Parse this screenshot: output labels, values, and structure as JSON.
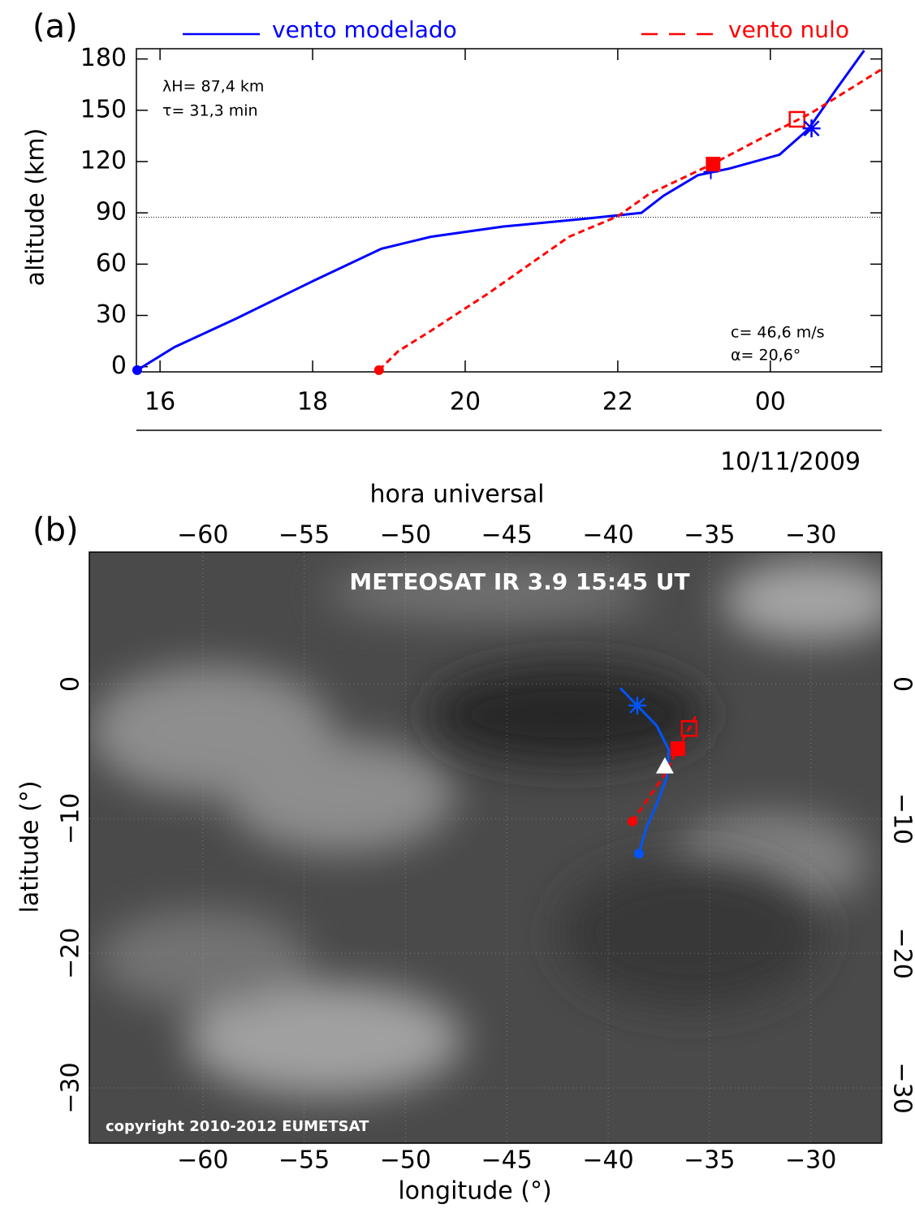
{
  "chart_data": [
    {
      "type": "line",
      "panel_label": "(a)",
      "x_label": "hora universal",
      "y_label": "altitude (km)",
      "date_label": "10/11/2009",
      "annotations": [
        "λH= 87,4 km",
        "τ= 31,3 min",
        "c= 46,6 m/s",
        "α= 20,6°"
      ],
      "xlim": [
        15.69,
        25.46
      ],
      "ylim": [
        -3,
        186
      ],
      "xticks": [
        16,
        18,
        20,
        22,
        {
          "value": 24,
          "label": "00"
        }
      ],
      "yticks": [
        0,
        30,
        60,
        90,
        120,
        150,
        180
      ],
      "reference_line": 87.4,
      "series": [
        {
          "name": "vento modelado",
          "color": "#0000ff",
          "dash": false,
          "x": [
            15.7,
            16.19,
            16.99,
            18.0,
            18.9,
            19.55,
            20.5,
            21.56,
            22.31,
            22.6,
            23.05,
            23.47,
            24.12,
            24.5,
            24.86,
            25.23
          ],
          "values": [
            -2,
            11.5,
            28,
            50,
            69,
            76,
            82,
            86.5,
            90,
            100,
            112,
            116,
            124,
            139,
            162,
            185
          ]
        },
        {
          "name": "vento nulo",
          "color": "#ff0000",
          "dash": true,
          "x": [
            18.87,
            19.12,
            19.55,
            20.29,
            21.36,
            22.0,
            22.41,
            23.26,
            23.9,
            24.54,
            25.46
          ],
          "values": [
            -2,
            9,
            21,
            42.5,
            76,
            88,
            101,
            119,
            134,
            148.5,
            174
          ]
        }
      ],
      "markers": [
        {
          "x": 15.7,
          "y": -2,
          "symbol": "circle",
          "color": "#0000ff"
        },
        {
          "x": 18.87,
          "y": -2,
          "symbol": "circle",
          "color": "#ff0000"
        },
        {
          "x": 23.22,
          "y": 114,
          "symbol": "plus",
          "color": "#0000ff"
        },
        {
          "x": 23.25,
          "y": 118.5,
          "symbol": "square",
          "color": "#ff0000"
        },
        {
          "x": 24.35,
          "y": 144.7,
          "symbol": "square-open",
          "color": "#ff0000"
        },
        {
          "x": 24.54,
          "y": 139.4,
          "symbol": "asterisk",
          "color": "#0000ff"
        }
      ]
    },
    {
      "type": "map",
      "panel_label": "(b)",
      "title": "METEOSAT IR 3.9 15:45 UT",
      "credit": "copyright 2010-2012 EUMETSAT",
      "x_label": "longitude (°)",
      "y_label": "latitude (°)",
      "xlim": [
        -65.6,
        -26.5
      ],
      "ylim": [
        -34.1,
        9.8
      ],
      "xticks": [
        {
          "value": -60,
          "label": "−60"
        },
        {
          "value": -55,
          "label": "−55"
        },
        {
          "value": -50,
          "label": "−50"
        },
        {
          "value": -45,
          "label": "−45"
        },
        {
          "value": -40,
          "label": "−40"
        },
        {
          "value": -35,
          "label": "−35"
        },
        {
          "value": -30,
          "label": "−30"
        }
      ],
      "yticks": [
        0,
        {
          "value": -10,
          "label": "−10"
        },
        {
          "value": -20,
          "label": "−20"
        },
        {
          "value": -30,
          "label": "−30"
        }
      ],
      "series": [
        {
          "color": "#0055ff",
          "dash": false,
          "x": [
            -39.4,
            -38.56,
            -37.6,
            -37.0,
            -37.12,
            -37.6,
            -38.12,
            -38.48
          ],
          "values": [
            -0.3,
            -1.6,
            -3.1,
            -4.9,
            -7.0,
            -8.9,
            -10.7,
            -12.6
          ]
        },
        {
          "color": "#ff0000",
          "dash": true,
          "x": [
            -38.8,
            -37.2,
            -36.56,
            -36.0,
            -35.6
          ],
          "values": [
            -10.2,
            -6.7,
            -4.8,
            -3.3,
            -2.2
          ]
        }
      ],
      "markers": [
        {
          "x": -38.48,
          "y": -12.6,
          "symbol": "circle",
          "color": "#0055ff"
        },
        {
          "x": -38.56,
          "y": -1.6,
          "symbol": "asterisk",
          "color": "#0055ff"
        },
        {
          "x": -38.8,
          "y": -10.2,
          "symbol": "circle",
          "color": "#ff0000"
        },
        {
          "x": -36.56,
          "y": -4.8,
          "symbol": "square",
          "color": "#ff0000"
        },
        {
          "x": -36.0,
          "y": -3.3,
          "symbol": "square-open",
          "color": "#ff0000"
        },
        {
          "x": -37.2,
          "y": -6.1,
          "symbol": "triangle",
          "color": "#ffffff"
        }
      ]
    }
  ]
}
